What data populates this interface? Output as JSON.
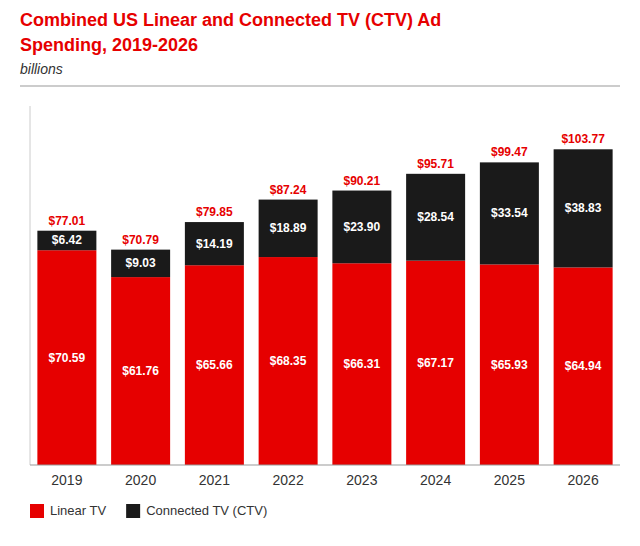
{
  "chart_data": {
    "type": "bar",
    "stacked": true,
    "title": [
      "Combined US Linear and Connected TV (CTV) Ad",
      "Spending, 2019-2026"
    ],
    "title_color": "#e60000",
    "subtitle": "billions",
    "categories": [
      "2019",
      "2020",
      "2021",
      "2022",
      "2023",
      "2024",
      "2025",
      "2026"
    ],
    "series": [
      {
        "name": "Linear TV",
        "color": "#e60000",
        "values": [
          70.59,
          61.76,
          65.66,
          68.35,
          66.31,
          67.17,
          65.93,
          64.94
        ],
        "value_labels": [
          "$70.59",
          "$61.76",
          "$65.66",
          "$68.35",
          "$66.31",
          "$67.17",
          "$65.93",
          "$64.94"
        ]
      },
      {
        "name": "Connected TV (CTV)",
        "color": "#1a1a1a",
        "values": [
          6.42,
          9.03,
          14.19,
          18.89,
          23.9,
          28.54,
          33.54,
          38.83
        ],
        "value_labels": [
          "$6.42",
          "$9.03",
          "$14.19",
          "$18.89",
          "$23.90",
          "$28.54",
          "$33.54",
          "$38.83"
        ]
      }
    ],
    "totals": [
      77.01,
      70.79,
      79.85,
      87.24,
      90.21,
      95.71,
      99.47,
      103.77
    ],
    "total_labels": [
      "$77.01",
      "$70.79",
      "$79.85",
      "$87.24",
      "$90.21",
      "$95.71",
      "$99.47",
      "$103.77"
    ],
    "totals_color": "#e60000",
    "ylim": [
      0,
      118
    ],
    "data_labels": true,
    "tick_labels": "x",
    "grid": false,
    "legend": "bottom"
  }
}
